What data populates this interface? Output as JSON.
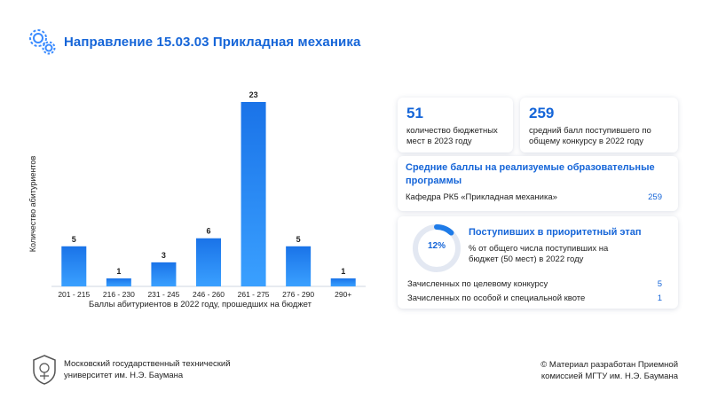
{
  "header": {
    "title": "Направление 15.03.03 Прикладная механика",
    "icon": "gears-icon"
  },
  "chart_data": {
    "type": "bar",
    "categories": [
      "201 - 215",
      "216 - 230",
      "231 - 245",
      "246 - 260",
      "261 - 275",
      "276 - 290",
      "290+"
    ],
    "values": [
      5,
      1,
      3,
      6,
      23,
      5,
      1
    ],
    "title": "",
    "xlabel": "Баллы абитуриентов в 2022 году, прошедших на бюджет",
    "ylabel": "Количество абитуриентов",
    "ylim": [
      0,
      23
    ],
    "grid": false,
    "legend": "none",
    "colors": {
      "bar_top": "#1e7be8",
      "bar_bottom": "#2f9bff"
    }
  },
  "cards": {
    "budget": {
      "number": "51",
      "text_line1": "количество бюджетных",
      "text_line2": "мест в 2023 году"
    },
    "avg": {
      "number": "259",
      "text_line1": "средний балл поступившего по",
      "text_line2": "общему конкурсу в 2022 году"
    },
    "programs": {
      "heading_line1": "Средние баллы на реализуемые образовательные",
      "heading_line2": "программы",
      "row_label": "Кафедра РК5 «Прикладная механика»",
      "row_value": "259"
    },
    "priority": {
      "percent": "12%",
      "percent_value": 12,
      "heading": "Поступивших в приоритетный этап",
      "text_line1": "% от общего числа поступивших на",
      "text_line2": "бюджет (50 мест) в 2022 году",
      "rows": [
        {
          "label": "Зачисленных по целевому конкурсу",
          "value": "5"
        },
        {
          "label": "Зачисленных по особой и специальной квоте",
          "value": "1"
        }
      ]
    }
  },
  "footer": {
    "left_line1": "Московский государственный технический",
    "left_line2": "университет им. Н.Э. Баумана",
    "right_line1": "© Материал разработан Приемной",
    "right_line2": "комиссией МГТУ им. Н.Э. Баумана",
    "emblem_icon": "university-emblem-icon"
  },
  "colors": {
    "accent": "#1565d8",
    "ring_track": "#e3e8f2",
    "ring_fill": "#1e7be8"
  }
}
